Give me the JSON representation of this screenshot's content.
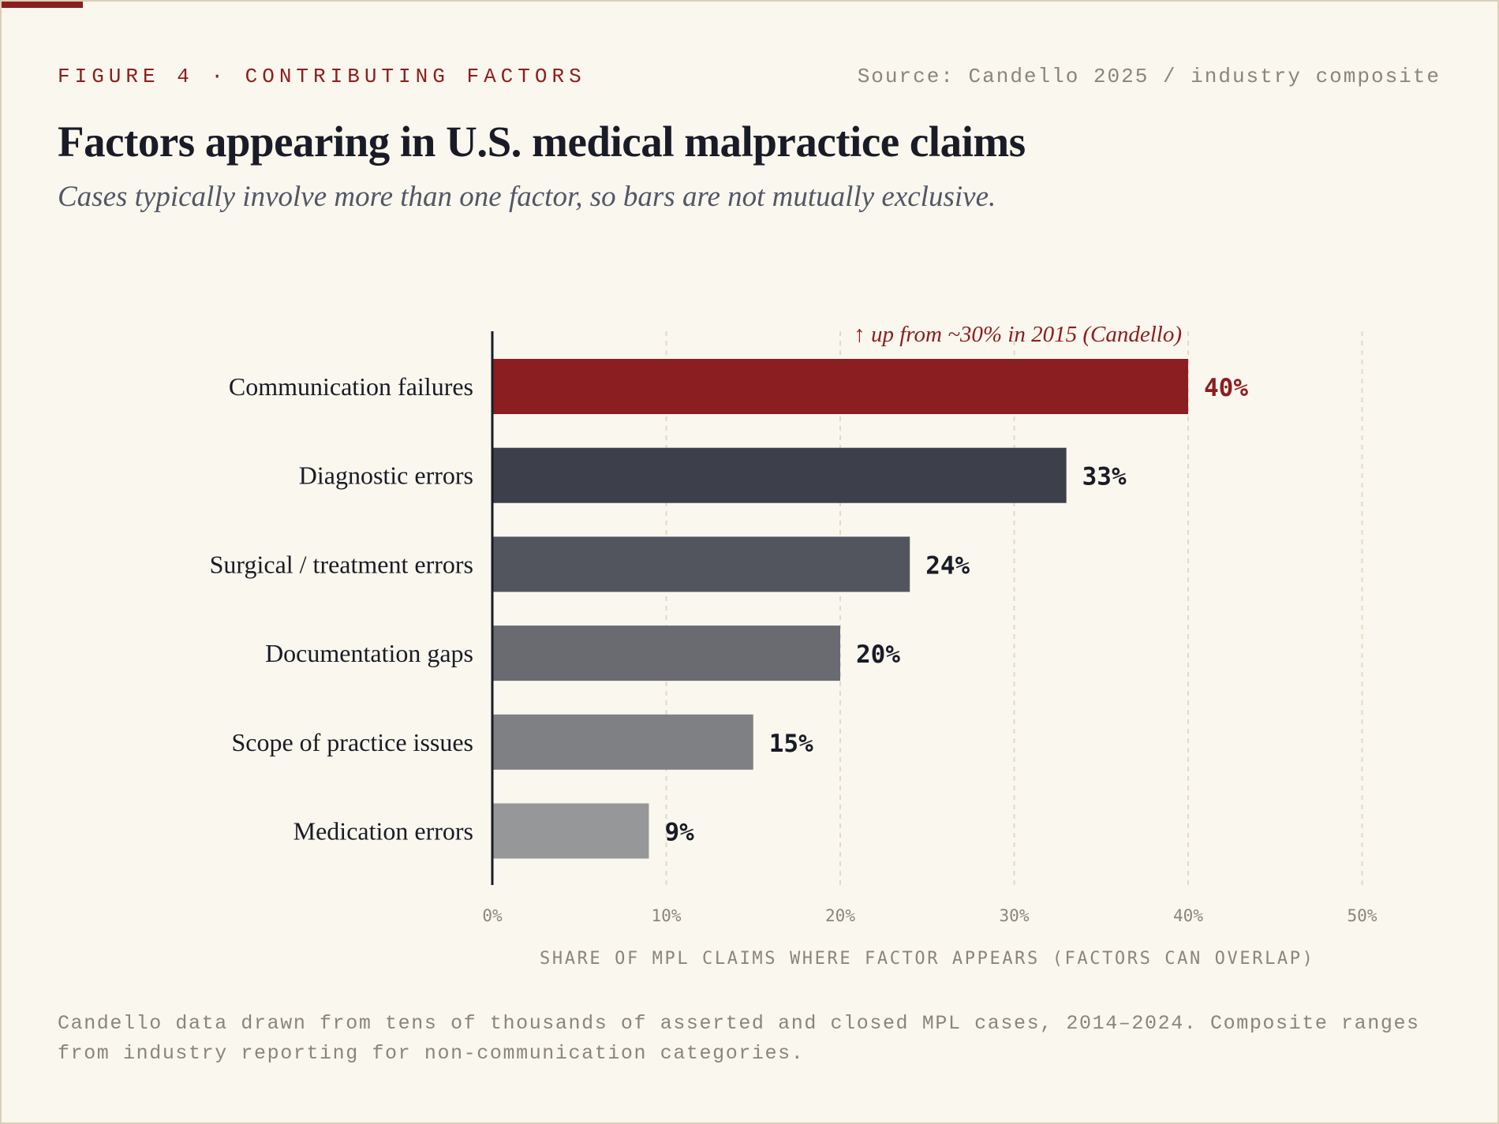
{
  "header": {
    "kicker": "FIGURE 4 · CONTRIBUTING FACTORS",
    "source": "Source: Candello 2025 / industry composite"
  },
  "chart_data": {
    "type": "bar",
    "orientation": "horizontal",
    "title": "Factors appearing in U.S. medical malpractice claims",
    "subtitle": "Cases typically involve more than one factor, so bars are not mutually exclusive.",
    "categories": [
      "Communication failures",
      "Diagnostic errors",
      "Surgical / treatment errors",
      "Documentation gaps",
      "Scope of practice issues",
      "Medication errors"
    ],
    "values": [
      40,
      33,
      24,
      20,
      15,
      9
    ],
    "value_labels": [
      "40%",
      "33%",
      "24%",
      "20%",
      "15%",
      "9%"
    ],
    "colors": [
      "#8b1e20",
      "#3d3f4a",
      "#52555e",
      "#6a6b71",
      "#7f8084",
      "#969798"
    ],
    "xlim": [
      0,
      50
    ],
    "xticks": [
      0,
      10,
      20,
      30,
      40,
      50
    ],
    "xtick_labels": [
      "0%",
      "10%",
      "20%",
      "30%",
      "40%",
      "50%"
    ],
    "xlabel": "SHARE OF MPL CLAIMS WHERE FACTOR APPEARS (FACTORS CAN OVERLAP)",
    "ylabel": "",
    "grid": "vertical dashed",
    "legend": "none",
    "annotation": {
      "text": "↑ up from ~30% in 2015 (Candello)",
      "category": "Communication failures"
    }
  },
  "footnote": "Candello data drawn from tens of thousands of asserted and closed MPL cases, 2014–2024. Composite ranges from industry reporting for non-communication categories.",
  "colors": {
    "accent": "#8b1e20",
    "background": "#faf7ee",
    "ink": "#191c26",
    "muted": "#8a857b"
  }
}
